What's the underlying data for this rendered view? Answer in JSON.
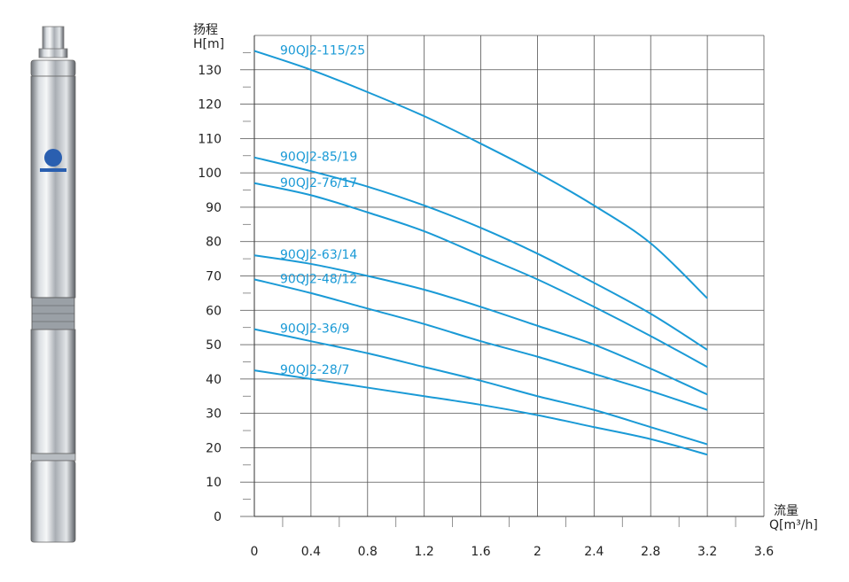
{
  "chart_data": {
    "type": "line",
    "y_axis": {
      "label_cn": "扬程",
      "label": "H[m]",
      "ylim": [
        0,
        140
      ],
      "ticks": [
        "0",
        "10",
        "20",
        "30",
        "40",
        "50",
        "60",
        "70",
        "80",
        "90",
        "100",
        "110",
        "120",
        "130"
      ]
    },
    "x_axis": {
      "label_cn": "流量",
      "label": "Q[m³/h]",
      "xlim": [
        0,
        3.6
      ],
      "ticks": [
        "0",
        "0.4",
        "0.8",
        "1.2",
        "1.6",
        "2",
        "2.4",
        "2.8",
        "3.2",
        "3.6"
      ]
    },
    "grid": true,
    "series_color": "#1a9ad6",
    "series": [
      {
        "name": "90QJ2-115/25",
        "x": [
          0,
          0.4,
          0.8,
          1.2,
          1.6,
          2,
          2.4,
          2.8,
          3.2
        ],
        "y": [
          135.5,
          130,
          123.5,
          116.5,
          108.5,
          100,
          90.5,
          79.5,
          63.5
        ]
      },
      {
        "name": "90QJ2-85/19",
        "x": [
          0,
          0.4,
          0.8,
          1.2,
          1.6,
          2,
          2.4,
          2.8,
          3.2
        ],
        "y": [
          104.5,
          100.5,
          96,
          90.5,
          84,
          76.5,
          68,
          59,
          48.5
        ]
      },
      {
        "name": "90QJ2-76/17",
        "x": [
          0,
          0.4,
          0.8,
          1.2,
          1.6,
          2,
          2.4,
          2.8,
          3.2
        ],
        "y": [
          97,
          93.5,
          88.5,
          83,
          76,
          69,
          61,
          52.5,
          43.5
        ]
      },
      {
        "name": "90QJ2-63/14",
        "x": [
          0,
          0.4,
          0.8,
          1.2,
          1.6,
          2,
          2.4,
          2.8,
          3.2
        ],
        "y": [
          76,
          73.5,
          70,
          66,
          61,
          55.5,
          50,
          43,
          35.5
        ]
      },
      {
        "name": "90QJ2-48/12",
        "x": [
          0,
          0.4,
          0.8,
          1.2,
          1.6,
          2,
          2.4,
          2.8,
          3.2
        ],
        "y": [
          69,
          65,
          60.5,
          56,
          51,
          46.5,
          41.5,
          36.5,
          31
        ]
      },
      {
        "name": "90QJ2-36/9",
        "x": [
          0,
          0.4,
          0.8,
          1.2,
          1.6,
          2,
          2.4,
          2.8,
          3.2
        ],
        "y": [
          54.5,
          51,
          47.5,
          43.5,
          39.5,
          35,
          31,
          26,
          21
        ]
      },
      {
        "name": "90QJ2-28/7",
        "x": [
          0,
          0.4,
          0.8,
          1.2,
          1.6,
          2,
          2.4,
          2.8,
          3.2
        ],
        "y": [
          42.5,
          40,
          37.5,
          35,
          32.5,
          29.5,
          26,
          22.5,
          18
        ]
      }
    ]
  }
}
